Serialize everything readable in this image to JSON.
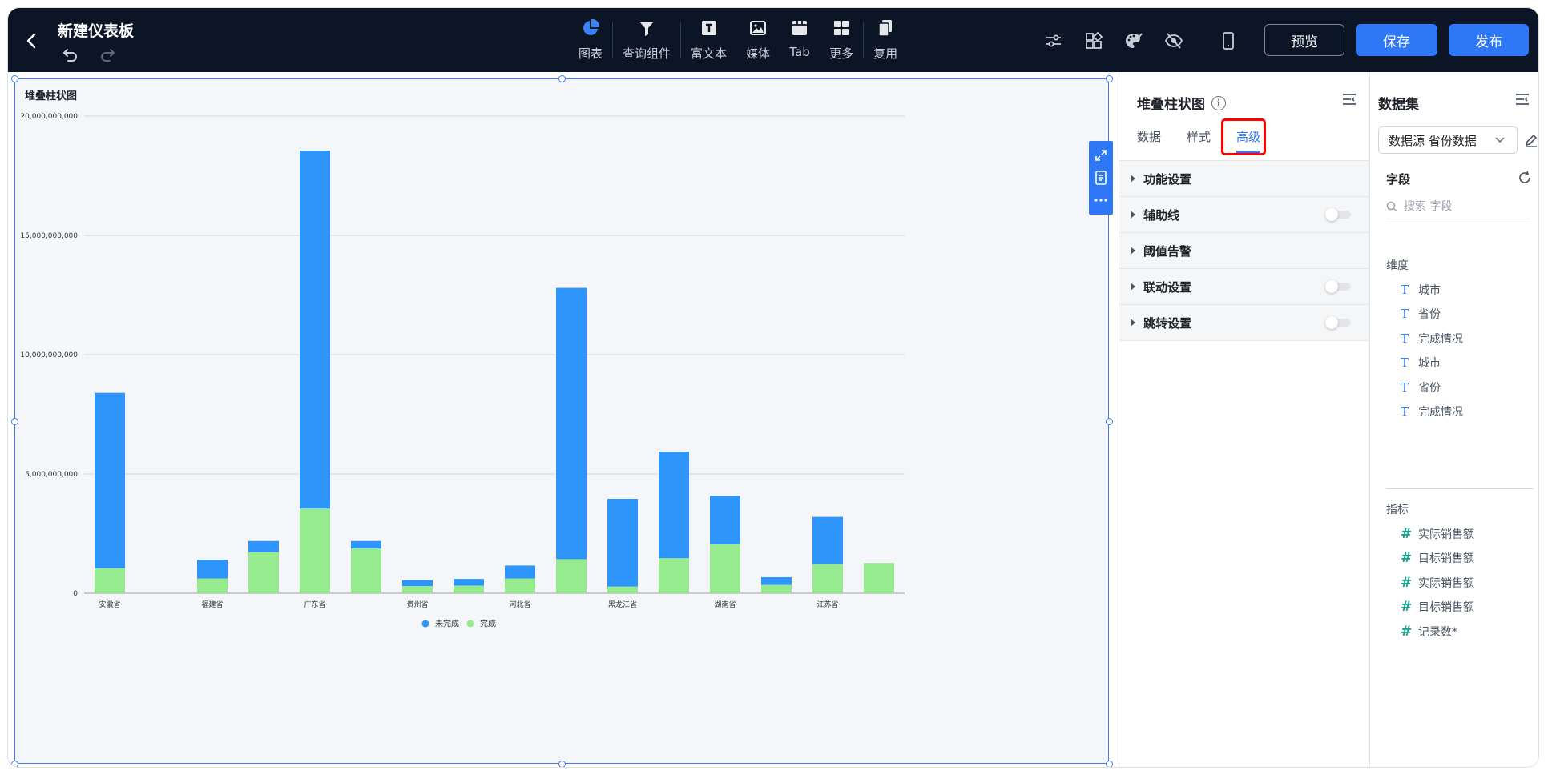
{
  "header": {
    "title": "新建仪表板",
    "tools": [
      {
        "icon": "pie-chart-icon",
        "label": "图表"
      },
      {
        "icon": "filter-icon",
        "label": "查询组件"
      },
      {
        "icon": "rich-text-icon",
        "label": "富文本"
      },
      {
        "icon": "media-image-icon",
        "label": "媒体"
      },
      {
        "icon": "tab-component-icon",
        "label": "Tab"
      },
      {
        "icon": "more-grid-icon",
        "label": "更多"
      },
      {
        "icon": "reuse-copy-icon",
        "label": "复用"
      }
    ],
    "preview_label": "预览",
    "save_label": "保存",
    "publish_label": "发布",
    "accent_color": "#2e77f6",
    "bar_color": "#0b1526"
  },
  "widget": {
    "title": "堆叠柱状图"
  },
  "chart_data": {
    "type": "bar",
    "stacked": true,
    "title": "堆叠柱状图",
    "categories": [
      "安徽省",
      "",
      "福建省",
      "",
      "广东省",
      "",
      "贵州省",
      "",
      "河北省",
      "",
      "黑龙江省",
      "",
      "湖南省",
      "",
      "江苏省",
      ""
    ],
    "series": [
      {
        "name": "完成",
        "color": "#96eb8f",
        "values": [
          1050000000,
          0,
          620000000,
          1720000000,
          3550000000,
          1880000000,
          300000000,
          320000000,
          620000000,
          1430000000,
          280000000,
          1470000000,
          2050000000,
          350000000,
          1230000000,
          1270000000
        ]
      },
      {
        "name": "未完成",
        "color": "#2d95fb",
        "values": [
          7350000000,
          0,
          780000000,
          470000000,
          15000000000,
          310000000,
          250000000,
          280000000,
          540000000,
          11370000000,
          3680000000,
          4460000000,
          2030000000,
          320000000,
          1970000000,
          0
        ]
      }
    ],
    "y_ticks": [
      "0",
      "5,000,000,000",
      "10,000,000,000",
      "15,000,000,000",
      "20,000,000,000"
    ],
    "ylim": [
      0,
      20000000000
    ],
    "grid": true,
    "legend_position": "bottom-center",
    "legend": [
      "未完成",
      "完成"
    ]
  },
  "settings": {
    "title": "堆叠柱状图",
    "tabs": [
      "数据",
      "样式",
      "高级"
    ],
    "active_tab": "高级",
    "sections": [
      {
        "label": "功能设置",
        "has_switch": false
      },
      {
        "label": "辅助线",
        "has_switch": true,
        "enabled": false
      },
      {
        "label": "阈值告警",
        "has_switch": false
      },
      {
        "label": "联动设置",
        "has_switch": true,
        "enabled": false
      },
      {
        "label": "跳转设置",
        "has_switch": true,
        "enabled": false
      }
    ]
  },
  "dataset": {
    "title": "数据集",
    "selected_source": "数据源 省份数据",
    "fields_title": "字段",
    "search_placeholder": "搜索 字段",
    "dimensions_title": "维度",
    "dimensions": [
      "城市",
      "省份",
      "完成情况",
      "城市",
      "省份",
      "完成情况"
    ],
    "metrics_title": "指标",
    "metrics": [
      "实际销售额",
      "目标销售额",
      "实际销售额",
      "目标销售额",
      "记录数*"
    ]
  }
}
